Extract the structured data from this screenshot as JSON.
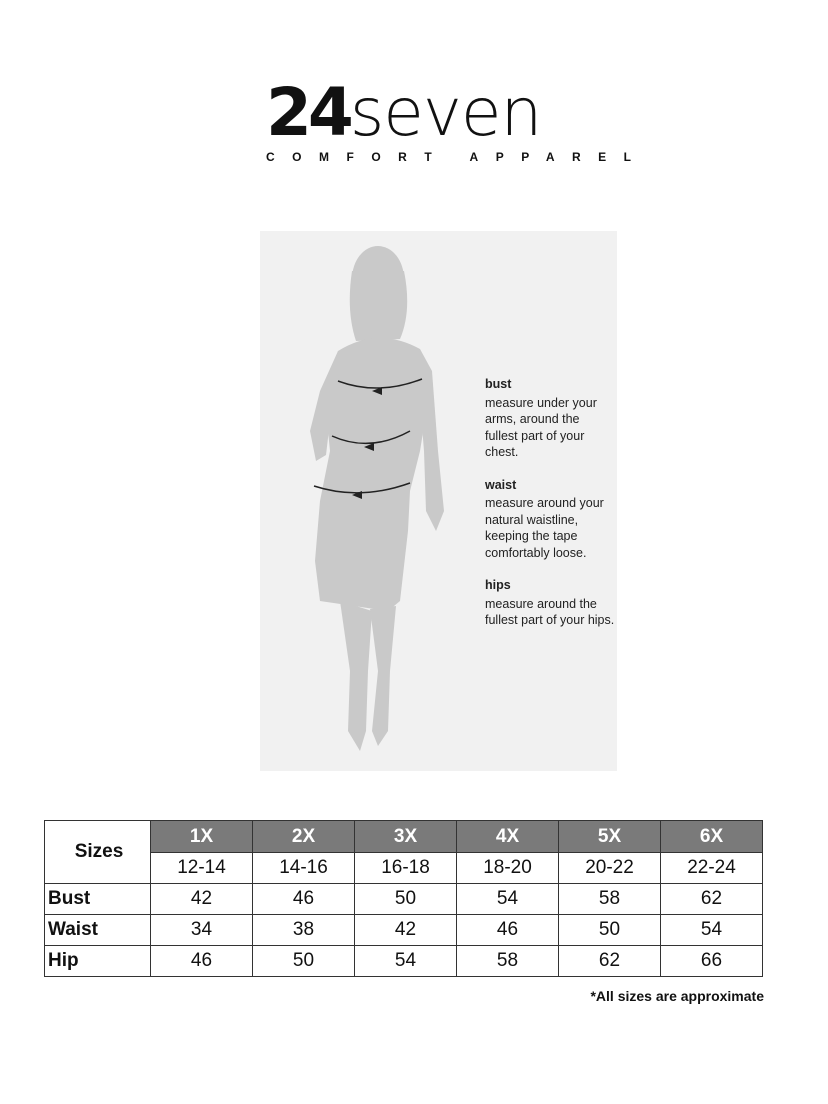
{
  "logo": {
    "brand_bold": "24",
    "brand_light": "seven",
    "tagline": "COMFORT APPAREL"
  },
  "guide": [
    {
      "title": "bust",
      "text": "measure under your arms, around the fullest part of your chest."
    },
    {
      "title": "waist",
      "text": "measure around your natural waistline, keeping the tape comfortably loose."
    },
    {
      "title": "hips",
      "text": "measure around the fullest part of your hips."
    }
  ],
  "table": {
    "corner": "Sizes",
    "sizes": [
      "1X",
      "2X",
      "3X",
      "4X",
      "5X",
      "6X"
    ],
    "ranges": [
      "12-14",
      "14-16",
      "16-18",
      "18-20",
      "20-22",
      "22-24"
    ],
    "rows": [
      {
        "label": "Bust",
        "values": [
          "42",
          "46",
          "50",
          "54",
          "58",
          "62"
        ]
      },
      {
        "label": "Waist",
        "values": [
          "34",
          "38",
          "42",
          "46",
          "50",
          "54"
        ]
      },
      {
        "label": "Hip",
        "values": [
          "46",
          "50",
          "54",
          "58",
          "62",
          "66"
        ]
      }
    ],
    "header_color": "#7a7a7a"
  },
  "note": "*All sizes are approximate"
}
